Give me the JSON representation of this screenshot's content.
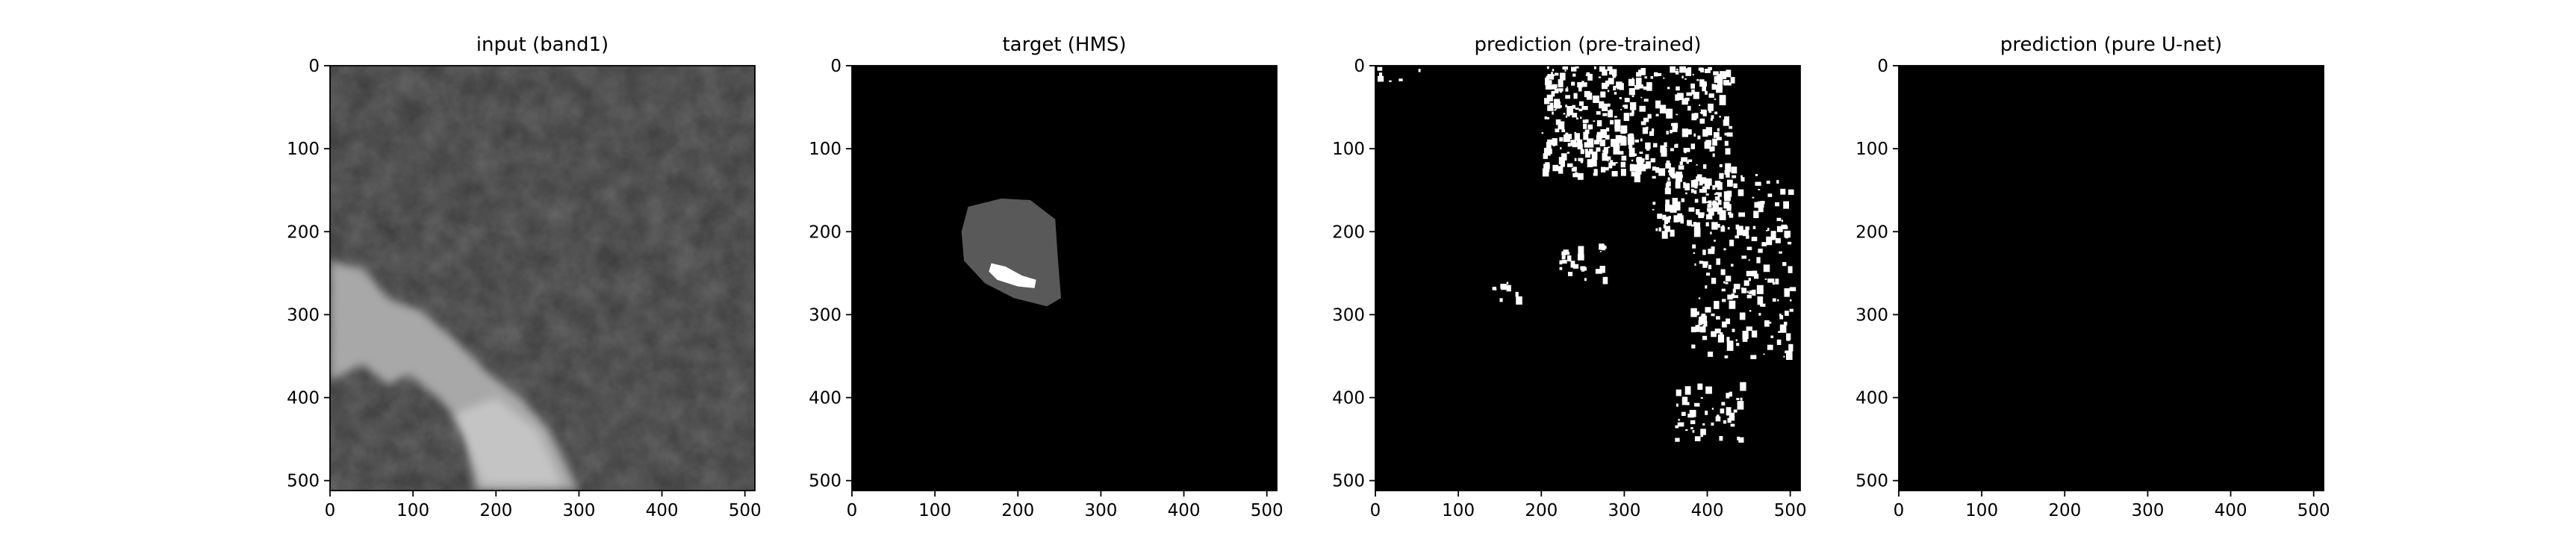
{
  "chart_data": [
    {
      "type": "image",
      "title": "input (band1)",
      "xlim": [
        0,
        512
      ],
      "ylim": [
        512,
        0
      ],
      "xticks": [
        0,
        100,
        200,
        300,
        400,
        500
      ],
      "yticks": [
        0,
        100,
        200,
        300,
        400,
        500
      ]
    },
    {
      "type": "image",
      "title": "target (HMS)",
      "xlim": [
        0,
        512
      ],
      "ylim": [
        512,
        0
      ],
      "xticks": [
        0,
        100,
        200,
        300,
        400,
        500
      ],
      "yticks": [
        0,
        100,
        200,
        300,
        400,
        500
      ]
    },
    {
      "type": "image",
      "title": "prediction (pre-trained)",
      "xlim": [
        0,
        512
      ],
      "ylim": [
        512,
        0
      ],
      "xticks": [
        0,
        100,
        200,
        300,
        400,
        500
      ],
      "yticks": [
        0,
        100,
        200,
        300,
        400,
        500
      ]
    },
    {
      "type": "image",
      "title": "prediction (pure U-net)",
      "xlim": [
        0,
        512
      ],
      "ylim": [
        512,
        0
      ],
      "xticks": [
        0,
        100,
        200,
        300,
        400,
        500
      ],
      "yticks": [
        0,
        100,
        200,
        300,
        400,
        500
      ]
    }
  ]
}
